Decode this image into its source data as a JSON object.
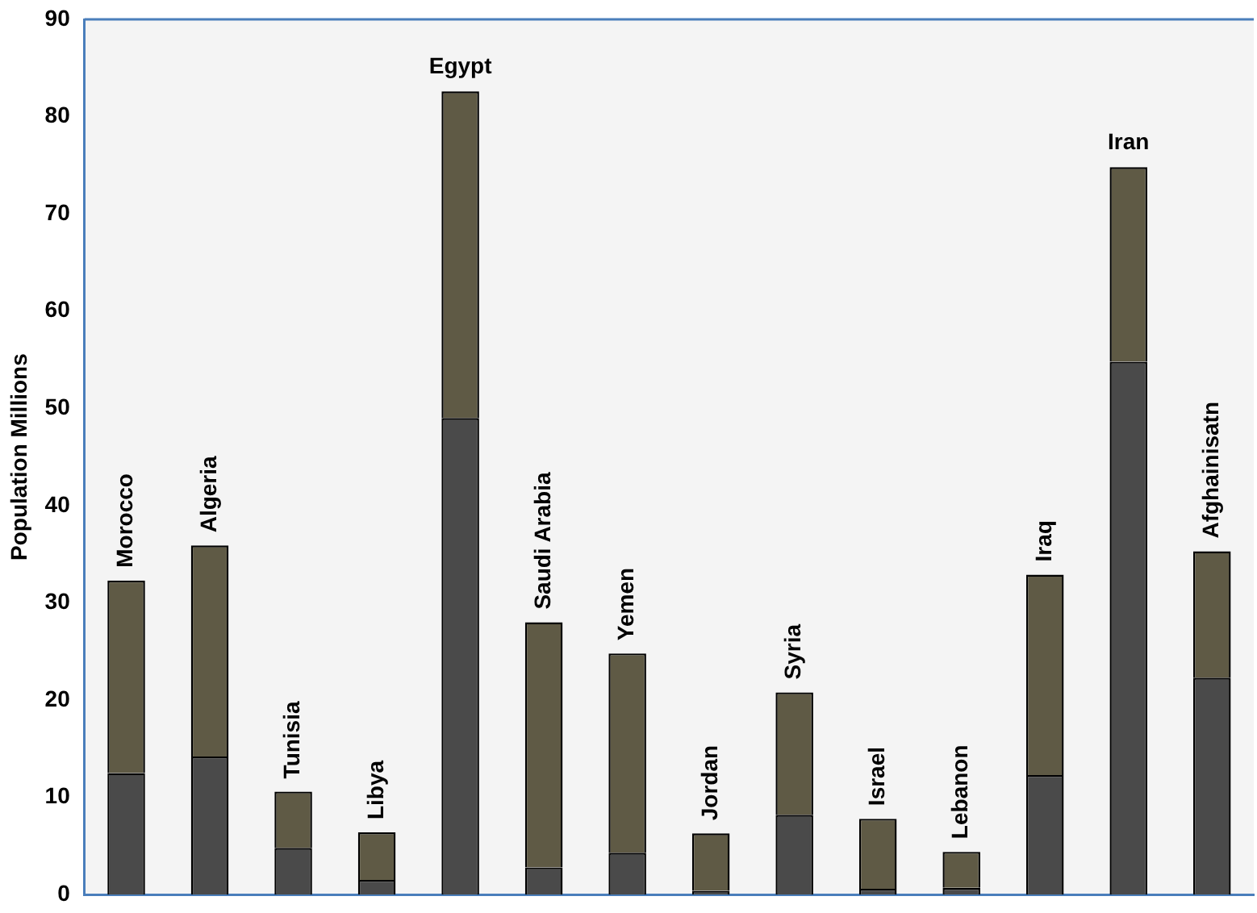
{
  "chart_data": {
    "type": "bar",
    "stacked": true,
    "ylabel": "Population Millions",
    "categories": [
      "Morocco",
      "Algeria",
      "Tunisia",
      "Libya",
      "Egypt",
      "Saudi Arabia",
      "Yemen",
      "Jordan",
      "Syria",
      "Israel",
      "Lebanon",
      "Iraq",
      "Iran",
      "Afghainisatn"
    ],
    "series": [
      {
        "color": "#4a4a4a",
        "values": [
          12.5,
          14.2,
          4.8,
          1.5,
          49,
          2.8,
          4.3,
          0.4,
          8.2,
          0.6,
          0.7,
          12.3,
          54.8,
          22.3
        ]
      },
      {
        "color": "#5f5a45",
        "values": [
          19.8,
          21.7,
          5.8,
          4.9,
          33.6,
          25.2,
          20.5,
          5.9,
          12.6,
          7.2,
          3.7,
          20.6,
          20.0,
          13.0
        ]
      }
    ],
    "ylim": [
      0,
      90
    ],
    "yticks": [
      0,
      10,
      20,
      30,
      40,
      50,
      60,
      70,
      80,
      90
    ],
    "grid": false,
    "legend": false,
    "tick_labels": "y"
  }
}
